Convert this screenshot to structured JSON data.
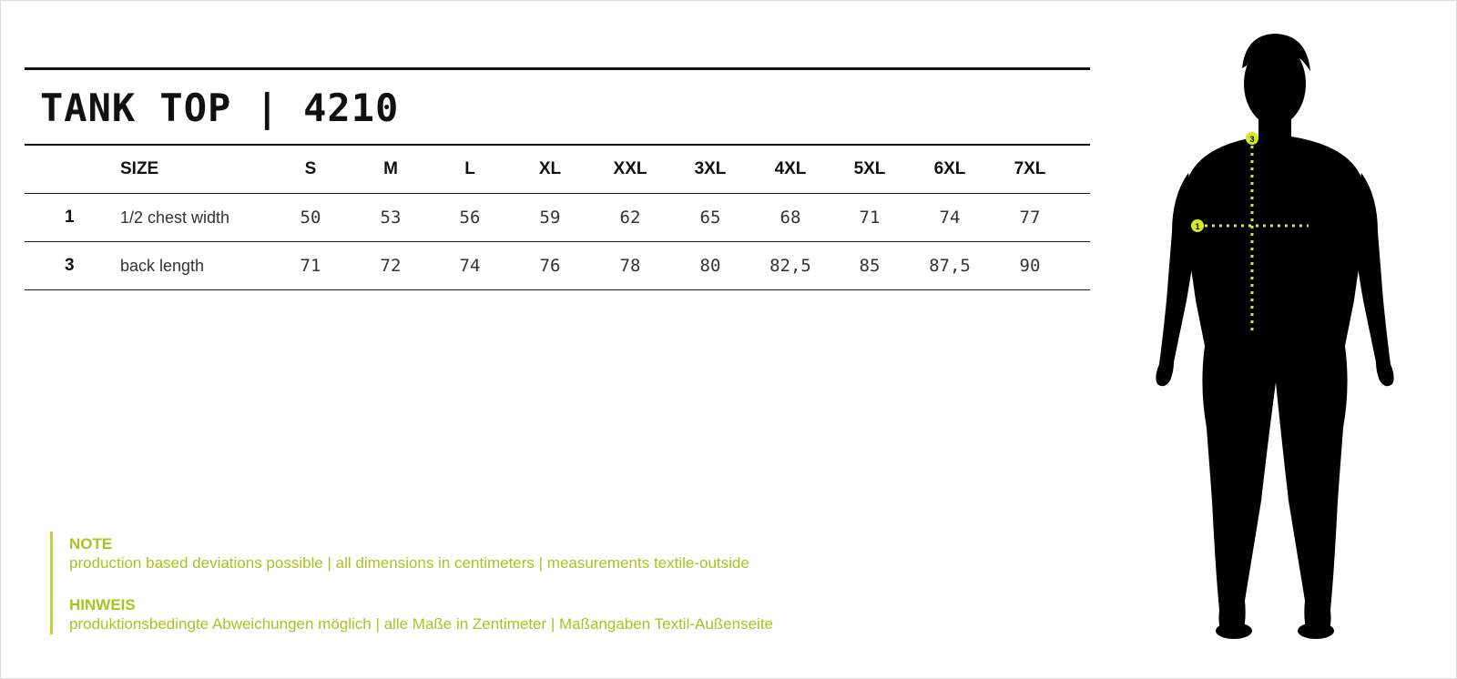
{
  "title": "TANK TOP | 4210",
  "table": {
    "size_label": "SIZE",
    "sizes": [
      "S",
      "M",
      "L",
      "XL",
      "XXL",
      "3XL",
      "4XL",
      "5XL",
      "6XL",
      "7XL"
    ],
    "rows": [
      {
        "num": "1",
        "label": "1/2 chest width",
        "values": [
          "50",
          "53",
          "56",
          "59",
          "62",
          "65",
          "68",
          "71",
          "74",
          "77"
        ]
      },
      {
        "num": "3",
        "label": "back length",
        "values": [
          "71",
          "72",
          "74",
          "76",
          "78",
          "80",
          "82,5",
          "85",
          "87,5",
          "90"
        ]
      }
    ]
  },
  "notes": [
    {
      "heading": "NOTE",
      "text": "production based deviations possible | all dimensions in centimeters  |  measurements textile-outside"
    },
    {
      "heading": "HINWEIS",
      "text": "produktionsbedingte Abweichungen möglich  |  alle Maße in Zentimeter  |  Maßangaben Textil-Außenseite"
    }
  ],
  "figure": {
    "markers": [
      "1",
      "3"
    ],
    "accent_color": "#d7ea1e"
  }
}
